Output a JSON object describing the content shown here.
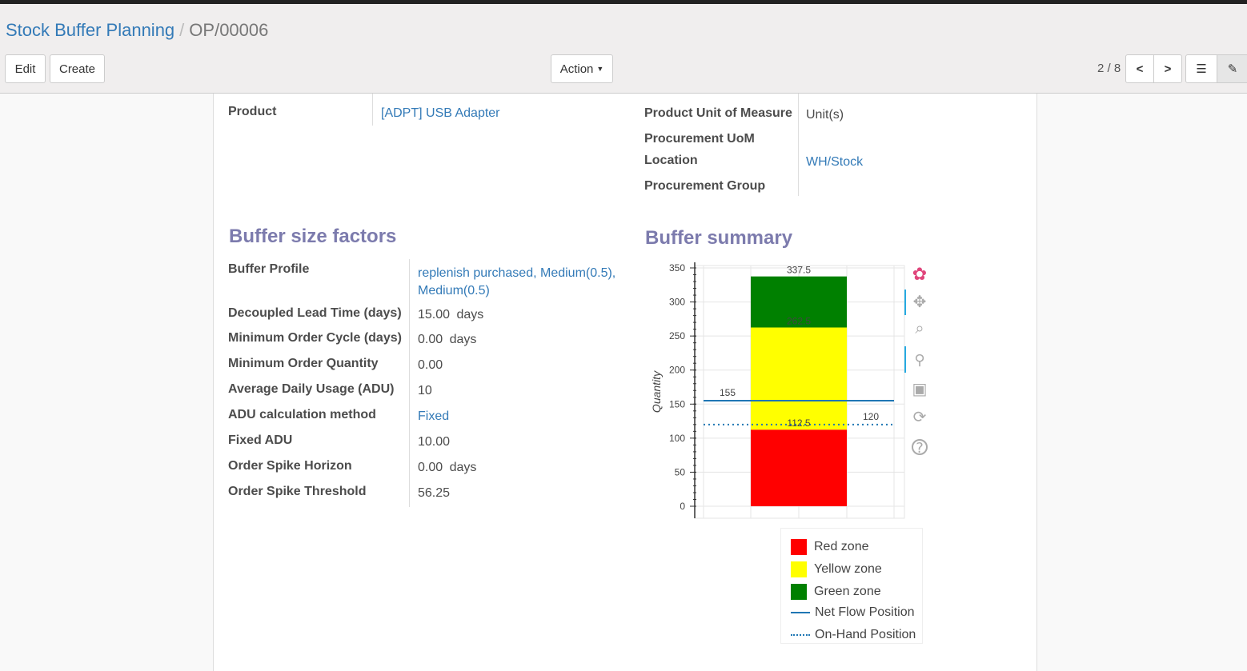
{
  "breadcrumb": {
    "parent": "Stock Buffer Planning",
    "current": "OP/00006"
  },
  "toolbar": {
    "edit": "Edit",
    "create": "Create",
    "action": "Action",
    "pager": "2 / 8"
  },
  "product": {
    "label": "Product",
    "value": "[ADPT] USB Adapter"
  },
  "right_fields": [
    {
      "label": "Product Unit of Measure",
      "value": "Unit(s)"
    },
    {
      "label": "Procurement UoM",
      "value": ""
    },
    {
      "label": "Location",
      "value": "WH/Stock"
    },
    {
      "label": "Procurement Group",
      "value": ""
    }
  ],
  "factors": {
    "title": "Buffer size factors",
    "fields": [
      {
        "label": "Buffer Profile",
        "value": "replenish purchased, Medium(0.5), Medium(0.5)",
        "unit": ""
      },
      {
        "label": "Decoupled Lead Time (days)",
        "value": "15.00",
        "unit": "days"
      },
      {
        "label": "Minimum Order Cycle (days)",
        "value": "0.00",
        "unit": "days"
      },
      {
        "label": "Minimum Order Quantity",
        "value": "0.00",
        "unit": ""
      },
      {
        "label": "Average Daily Usage (ADU)",
        "value": "10",
        "unit": ""
      },
      {
        "label": "ADU calculation method",
        "value": "Fixed",
        "unit": ""
      },
      {
        "label": "Fixed ADU",
        "value": "10.00",
        "unit": ""
      },
      {
        "label": "Order Spike Horizon",
        "value": "0.00",
        "unit": "days"
      },
      {
        "label": "Order Spike Threshold",
        "value": "56.25",
        "unit": ""
      }
    ]
  },
  "summary": {
    "title": "Buffer summary"
  },
  "chart_data": {
    "type": "bar",
    "ylabel": "Quantity",
    "ylim": [
      0,
      350
    ],
    "yticks": [
      0,
      50,
      100,
      150,
      200,
      250,
      300,
      350
    ],
    "grid": true,
    "series": [
      {
        "name": "Red zone",
        "from": 0,
        "to": 112.5,
        "color": "#ff0000",
        "label": "112.5"
      },
      {
        "name": "Yellow zone",
        "from": 112.5,
        "to": 262.5,
        "color": "#ffff00",
        "label": "262.5"
      },
      {
        "name": "Green zone",
        "from": 262.5,
        "to": 337.5,
        "color": "#008000",
        "label": "337.5"
      }
    ],
    "lines": [
      {
        "name": "Net Flow Position",
        "value": 155,
        "label": "155",
        "style": "solid",
        "color": "#1f77b4"
      },
      {
        "name": "On-Hand Position",
        "value": 120,
        "label": "120",
        "style": "dotted",
        "color": "#1f77b4"
      }
    ],
    "legend": "bottom"
  },
  "chart_tools": [
    "bokeh-logo-icon",
    "pan-icon",
    "box-zoom-icon",
    "wheel-zoom-icon",
    "save-icon",
    "reset-icon",
    "help-icon"
  ]
}
